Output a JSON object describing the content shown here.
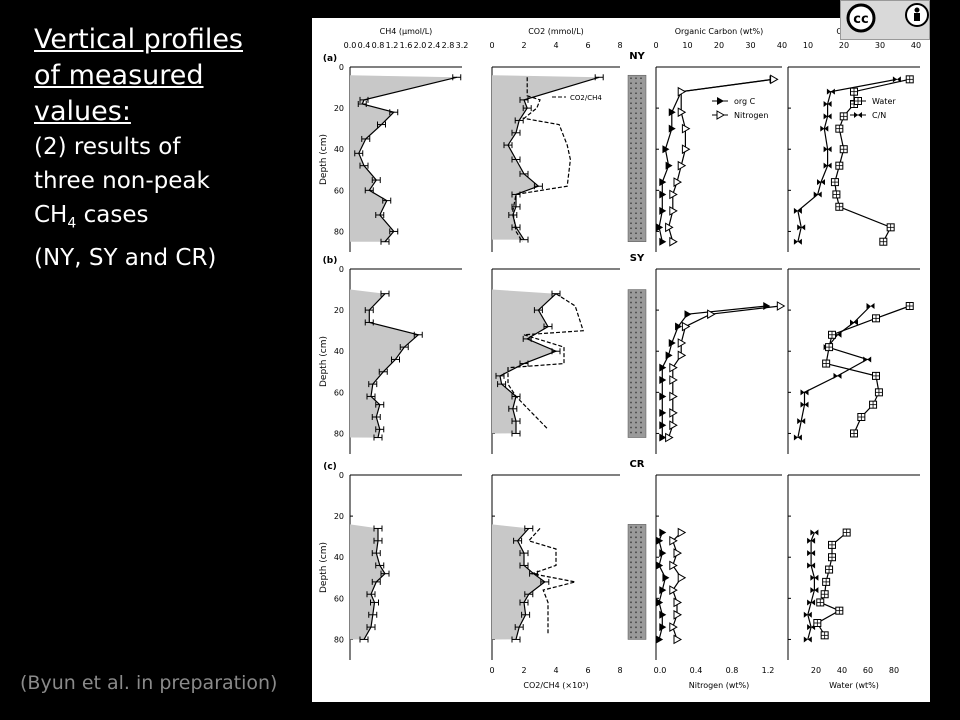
{
  "slide": {
    "title_line1": "Vertical profiles",
    "title_line2": "of measured",
    "title_line3": "values:",
    "subtitle_line1": "(2) results of",
    "subtitle_line2": "three non-peak",
    "subtitle_line3_prefix": "CH",
    "subtitle_line3_sub": "4",
    "subtitle_line3_suffix": " cases",
    "subtitle_line4": "(NY, SY and CR)",
    "citation": "(Byun et al. in preparation)",
    "license_icons": [
      "cc-icon",
      "by-icon"
    ],
    "license_text": "cc"
  },
  "chart_data": {
    "type": "line",
    "panel_labels": [
      "(a)",
      "(b)",
      "(c)"
    ],
    "site_labels": [
      "NY",
      "SY",
      "CR"
    ],
    "ylabel": "Depth (cm)",
    "ylim": [
      0,
      90
    ],
    "yticks": [
      0,
      20,
      40,
      60,
      80
    ],
    "columns": {
      "ch4": {
        "title": "CH4 (μmol/L)",
        "xlim": [
          0,
          3.2
        ],
        "xticks": [
          "0.0",
          "0.4",
          "0.8",
          "1.2",
          "1.6",
          "2.0",
          "2.4",
          "2.8",
          "3.2"
        ]
      },
      "co2": {
        "title": "CO2 (mmol/L)",
        "bottom_label": "CO2/CH4 (×10³)",
        "xlim": [
          0,
          8
        ],
        "xticks": [
          "0",
          "2",
          "4",
          "6",
          "8"
        ],
        "legend": "CO2/CH4"
      },
      "orgc": {
        "title": "Organic Carbon (wt%)",
        "bottom_label": "Nitrogen (wt%)",
        "xlim": [
          0,
          40
        ],
        "xticks_top": [
          "0",
          "10",
          "20",
          "30",
          "40"
        ],
        "xticks_bottom": [
          "0.0",
          "0.4",
          "0.8",
          "1.2"
        ],
        "legend": [
          "org C",
          "Nitrogen"
        ]
      },
      "cn": {
        "title": "C/N ratio",
        "bottom_label": "Water (wt%)",
        "xlim": [
          0,
          40
        ],
        "xticks_top": [
          "10",
          "20",
          "30",
          "40"
        ],
        "xticks_bottom": [
          "20",
          "40",
          "60",
          "80"
        ],
        "legend": [
          "Water",
          "C/N"
        ]
      }
    },
    "panels": [
      {
        "site": "NY",
        "depth_min": 4,
        "ch4": [
          [
            5,
            3.05
          ],
          [
            16,
            0.4
          ],
          [
            18,
            0.35
          ],
          [
            22,
            1.25
          ],
          [
            28,
            0.9
          ],
          [
            35,
            0.45
          ],
          [
            42,
            0.25
          ],
          [
            48,
            0.4
          ],
          [
            55,
            0.75
          ],
          [
            60,
            0.55
          ],
          [
            65,
            1.05
          ],
          [
            72,
            0.85
          ],
          [
            80,
            1.25
          ],
          [
            85,
            1.0
          ]
        ],
        "co2": [
          [
            5,
            6.7
          ],
          [
            16,
            2.0
          ],
          [
            20,
            2.2
          ],
          [
            26,
            1.7
          ],
          [
            32,
            1.5
          ],
          [
            38,
            1.0
          ],
          [
            45,
            1.5
          ],
          [
            52,
            2.0
          ],
          [
            58,
            2.9
          ],
          [
            62,
            1.5
          ],
          [
            68,
            1.5
          ],
          [
            72,
            1.3
          ],
          [
            78,
            1.5
          ],
          [
            84,
            2.0
          ]
        ],
        "co2ch4": [
          [
            5,
            2.2
          ],
          [
            14,
            2.2
          ],
          [
            16,
            3.0
          ],
          [
            20,
            2.8
          ],
          [
            25,
            2.0
          ],
          [
            28,
            4.2
          ],
          [
            38,
            4.7
          ],
          [
            45,
            4.9
          ],
          [
            58,
            4.7
          ],
          [
            62,
            1.5
          ],
          [
            70,
            1.3
          ],
          [
            80,
            1.5
          ],
          [
            85,
            1.9
          ]
        ],
        "orgc": [
          [
            6,
            37
          ],
          [
            12,
            8
          ],
          [
            22,
            5
          ],
          [
            30,
            5
          ],
          [
            40,
            3
          ],
          [
            48,
            4
          ],
          [
            56,
            2
          ],
          [
            62,
            2
          ],
          [
            70,
            2
          ],
          [
            78,
            1
          ],
          [
            85,
            2
          ]
        ],
        "nitrogen": [
          [
            6,
            1.4
          ],
          [
            12,
            0.3
          ],
          [
            22,
            0.3
          ],
          [
            30,
            0.35
          ],
          [
            40,
            0.35
          ],
          [
            48,
            0.3
          ],
          [
            56,
            0.25
          ],
          [
            62,
            0.2
          ],
          [
            70,
            0.2
          ],
          [
            78,
            0.15
          ],
          [
            85,
            0.2
          ]
        ],
        "cn": [
          [
            6,
            33
          ],
          [
            12,
            13
          ],
          [
            18,
            12
          ],
          [
            24,
            12
          ],
          [
            30,
            11
          ],
          [
            40,
            12
          ],
          [
            48,
            12
          ],
          [
            56,
            10
          ],
          [
            62,
            9
          ],
          [
            70,
            3
          ],
          [
            78,
            4
          ],
          [
            85,
            3
          ]
        ],
        "water": [
          [
            6,
            83
          ],
          [
            12,
            45
          ],
          [
            18,
            45
          ],
          [
            24,
            38
          ],
          [
            30,
            35
          ],
          [
            40,
            38
          ],
          [
            48,
            35
          ],
          [
            56,
            32
          ],
          [
            62,
            33
          ],
          [
            68,
            35
          ],
          [
            78,
            70
          ],
          [
            85,
            65
          ]
        ]
      },
      {
        "site": "SY",
        "depth_min": 10,
        "ch4": [
          [
            12,
            1.0
          ],
          [
            20,
            0.55
          ],
          [
            26,
            0.55
          ],
          [
            32,
            1.95
          ],
          [
            38,
            1.55
          ],
          [
            44,
            1.3
          ],
          [
            50,
            0.95
          ],
          [
            56,
            0.65
          ],
          [
            62,
            0.6
          ],
          [
            66,
            0.85
          ],
          [
            72,
            0.75
          ],
          [
            78,
            0.85
          ],
          [
            82,
            0.8
          ]
        ],
        "co2": [
          [
            12,
            4.0
          ],
          [
            20,
            2.9
          ],
          [
            28,
            3.5
          ],
          [
            34,
            2.2
          ],
          [
            40,
            4.0
          ],
          [
            46,
            2.0
          ],
          [
            52,
            0.5
          ],
          [
            56,
            0.6
          ],
          [
            62,
            1.5
          ],
          [
            68,
            1.3
          ],
          [
            74,
            1.5
          ],
          [
            80,
            1.5
          ]
        ],
        "co2ch4": [
          [
            12,
            4.0
          ],
          [
            18,
            5.2
          ],
          [
            30,
            5.7
          ],
          [
            32,
            2.0
          ],
          [
            38,
            4.5
          ],
          [
            46,
            4.5
          ],
          [
            48,
            1.0
          ],
          [
            56,
            1.0
          ],
          [
            62,
            1.5
          ],
          [
            70,
            2.5
          ],
          [
            78,
            3.5
          ]
        ],
        "orgc": [
          [
            18,
            35
          ],
          [
            22,
            10
          ],
          [
            28,
            7
          ],
          [
            36,
            5
          ],
          [
            42,
            4
          ],
          [
            48,
            2
          ],
          [
            54,
            2
          ],
          [
            62,
            2
          ],
          [
            70,
            2
          ],
          [
            76,
            2
          ],
          [
            82,
            2
          ]
        ],
        "nitrogen": [
          [
            18,
            1.48
          ],
          [
            22,
            0.65
          ],
          [
            28,
            0.35
          ],
          [
            36,
            0.3
          ],
          [
            42,
            0.3
          ],
          [
            48,
            0.2
          ],
          [
            54,
            0.2
          ],
          [
            62,
            0.2
          ],
          [
            70,
            0.2
          ],
          [
            76,
            0.2
          ],
          [
            82,
            0.15
          ]
        ],
        "cn": [
          [
            18,
            25
          ],
          [
            26,
            20
          ],
          [
            32,
            15
          ],
          [
            38,
            12
          ],
          [
            44,
            24
          ],
          [
            52,
            15
          ],
          [
            60,
            5
          ],
          [
            66,
            5
          ],
          [
            74,
            4
          ],
          [
            82,
            3
          ]
        ],
        "water": [
          [
            18,
            83
          ],
          [
            24,
            60
          ],
          [
            32,
            30
          ],
          [
            38,
            28
          ],
          [
            46,
            26
          ],
          [
            52,
            60
          ],
          [
            60,
            62
          ],
          [
            66,
            58
          ],
          [
            72,
            50
          ],
          [
            80,
            45
          ]
        ]
      },
      {
        "site": "CR",
        "depth_min": 24,
        "ch4": [
          [
            26,
            0.8
          ],
          [
            32,
            0.8
          ],
          [
            38,
            0.75
          ],
          [
            44,
            0.85
          ],
          [
            48,
            1.0
          ],
          [
            52,
            0.75
          ],
          [
            58,
            0.6
          ],
          [
            62,
            0.7
          ],
          [
            68,
            0.65
          ],
          [
            74,
            0.6
          ],
          [
            80,
            0.4
          ]
        ],
        "co2": [
          [
            26,
            2.3
          ],
          [
            32,
            1.6
          ],
          [
            38,
            2.0
          ],
          [
            44,
            2.0
          ],
          [
            48,
            2.6
          ],
          [
            52,
            3.3
          ],
          [
            58,
            2.3
          ],
          [
            62,
            2.0
          ],
          [
            68,
            2.1
          ],
          [
            74,
            1.7
          ],
          [
            80,
            1.5
          ]
        ],
        "co2ch4": [
          [
            26,
            3.0
          ],
          [
            32,
            2.3
          ],
          [
            36,
            4.0
          ],
          [
            44,
            4.0
          ],
          [
            48,
            2.5
          ],
          [
            52,
            5.2
          ],
          [
            56,
            3.2
          ],
          [
            62,
            3.5
          ],
          [
            68,
            3.5
          ],
          [
            74,
            3.5
          ],
          [
            78,
            3.5
          ]
        ],
        "orgc": [
          [
            28,
            2
          ],
          [
            32,
            1
          ],
          [
            38,
            2
          ],
          [
            44,
            1
          ],
          [
            50,
            3
          ],
          [
            56,
            2
          ],
          [
            62,
            1
          ],
          [
            68,
            2
          ],
          [
            74,
            2
          ],
          [
            80,
            1
          ]
        ],
        "nitrogen": [
          [
            28,
            0.3
          ],
          [
            32,
            0.2
          ],
          [
            38,
            0.25
          ],
          [
            44,
            0.2
          ],
          [
            50,
            0.3
          ],
          [
            56,
            0.2
          ],
          [
            62,
            0.25
          ],
          [
            68,
            0.25
          ],
          [
            74,
            0.2
          ],
          [
            80,
            0.25
          ]
        ],
        "cn": [
          [
            28,
            8
          ],
          [
            32,
            7
          ],
          [
            38,
            7
          ],
          [
            44,
            7
          ],
          [
            50,
            8
          ],
          [
            56,
            8
          ],
          [
            62,
            7
          ],
          [
            68,
            6
          ],
          [
            74,
            7
          ],
          [
            80,
            6
          ]
        ],
        "water": [
          [
            28,
            40
          ],
          [
            34,
            30
          ],
          [
            40,
            30
          ],
          [
            46,
            28
          ],
          [
            52,
            26
          ],
          [
            58,
            25
          ],
          [
            62,
            22
          ],
          [
            66,
            35
          ],
          [
            72,
            20
          ],
          [
            78,
            25
          ]
        ]
      }
    ]
  }
}
